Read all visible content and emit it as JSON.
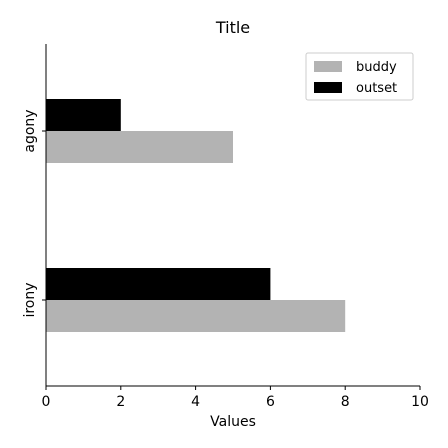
{
  "chart_data": {
    "type": "bar",
    "orientation": "horizontal",
    "title": "Title",
    "xlabel": "Values",
    "ylabel": "",
    "xlim": [
      0,
      10
    ],
    "xticks": [
      "0",
      "2",
      "4",
      "6",
      "8",
      "10"
    ],
    "categories": [
      "agony",
      "irony"
    ],
    "series": [
      {
        "name": "buddy",
        "color": "#b3b3b3",
        "values": [
          5,
          8
        ]
      },
      {
        "name": "outset",
        "color": "#000000",
        "values": [
          2,
          6
        ]
      }
    ],
    "legend": "top-right",
    "grid": false
  }
}
